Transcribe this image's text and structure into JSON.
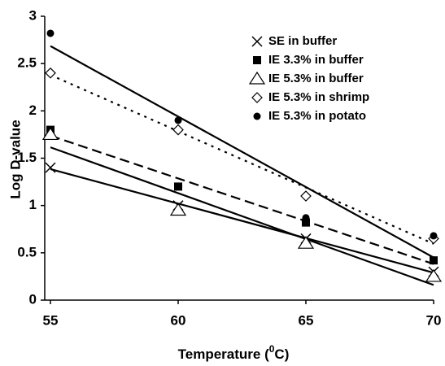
{
  "chart_data": {
    "type": "scatter",
    "xlabel_parts": [
      "Temperature (",
      "0",
      "C)"
    ],
    "ylabel": "Log D-value",
    "x": [
      55,
      60,
      65,
      70
    ],
    "xlim": [
      55,
      70
    ],
    "xticks": [
      55,
      60,
      65,
      70
    ],
    "ylim": [
      0,
      3
    ],
    "yticks": [
      0,
      0.5,
      1,
      1.5,
      2,
      2.5,
      3
    ],
    "trendline": true,
    "legend": "top-right",
    "series": [
      {
        "name": "SE in buffer",
        "color": "#000000",
        "marker": "x",
        "line_style": "solid",
        "values": [
          1.4,
          1.0,
          0.65,
          0.3
        ]
      },
      {
        "name": "IE 3.3% in buffer",
        "color": "#000000",
        "marker": "square",
        "line_style": "dashed",
        "values": [
          1.8,
          1.2,
          0.82,
          0.42
        ]
      },
      {
        "name": "IE 5.3% in buffer",
        "color": "#000000",
        "marker": "triangle",
        "line_style": "solid",
        "values": [
          1.75,
          0.95,
          0.6,
          0.25
        ]
      },
      {
        "name": "IE 5.3% in shrimp",
        "color": "#000000",
        "marker": "diamond",
        "line_style": "dotted",
        "values": [
          2.4,
          1.8,
          1.1,
          0.65
        ]
      },
      {
        "name": "IE 5.3% in potato",
        "color": "#000000",
        "marker": "circle",
        "line_style": "solid",
        "values": [
          2.82,
          1.9,
          0.87,
          0.68
        ]
      }
    ]
  }
}
